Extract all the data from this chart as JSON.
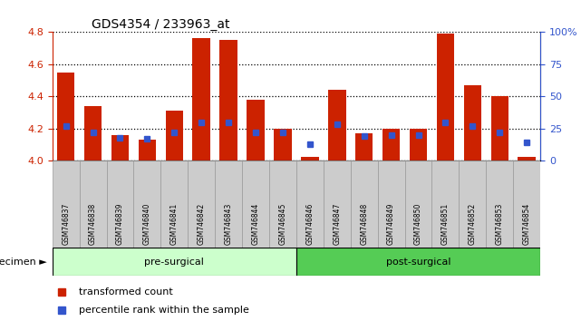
{
  "title": "GDS4354 / 233963_at",
  "samples": [
    "GSM746837",
    "GSM746838",
    "GSM746839",
    "GSM746840",
    "GSM746841",
    "GSM746842",
    "GSM746843",
    "GSM746844",
    "GSM746845",
    "GSM746846",
    "GSM746847",
    "GSM746848",
    "GSM746849",
    "GSM746850",
    "GSM746851",
    "GSM746852",
    "GSM746853",
    "GSM746854"
  ],
  "transformed_count": [
    4.55,
    4.34,
    4.16,
    4.13,
    4.31,
    4.76,
    4.75,
    4.38,
    4.2,
    4.02,
    4.44,
    4.17,
    4.2,
    4.2,
    4.79,
    4.47,
    4.4,
    4.02
  ],
  "percentile_rank": [
    27,
    22,
    18,
    17,
    22,
    30,
    30,
    22,
    22,
    13,
    28,
    19,
    20,
    20,
    30,
    27,
    22,
    14
  ],
  "ymin": 4.0,
  "ymax": 4.8,
  "yticks": [
    4.0,
    4.2,
    4.4,
    4.6,
    4.8
  ],
  "right_yticks": [
    0,
    25,
    50,
    75,
    100
  ],
  "right_yticklabels": [
    "0",
    "25",
    "50",
    "75",
    "100%"
  ],
  "bar_color": "#cc2200",
  "marker_color": "#3355cc",
  "pre_surgical_count": 9,
  "post_surgical_count": 9,
  "pre_surgical_label": "pre-surgical",
  "post_surgical_label": "post-surgical",
  "pre_surgical_color": "#ccffcc",
  "post_surgical_color": "#55cc55",
  "specimen_label": "specimen",
  "legend_bar_label": "transformed count",
  "legend_marker_label": "percentile rank within the sample",
  "left_axis_color": "#cc2200",
  "right_axis_color": "#3355cc",
  "sample_box_color": "#cccccc",
  "sample_box_edgecolor": "#999999"
}
